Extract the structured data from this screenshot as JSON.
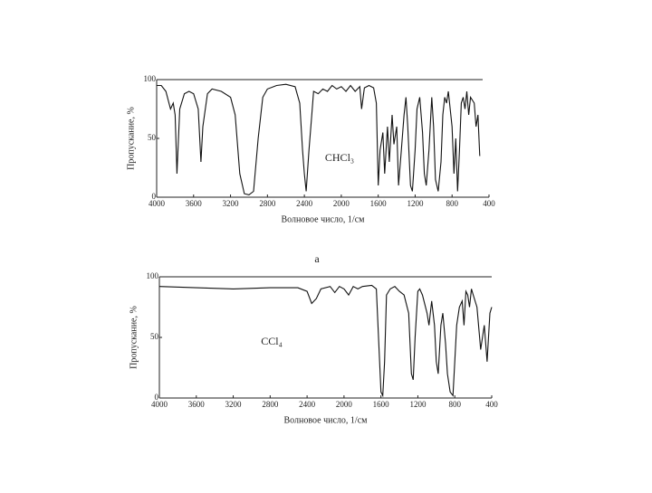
{
  "chart_data": [
    {
      "type": "line",
      "annotation": "CHCl₃",
      "xlabel": "Волновое число, 1/см",
      "ylabel": "Пропускание, %",
      "color": "#111111",
      "xlim": [
        4000,
        400
      ],
      "xticks": [
        4000,
        3600,
        3200,
        2800,
        2400,
        2000,
        1600,
        1200,
        800,
        400
      ],
      "ylim": [
        0,
        100
      ],
      "yticks": [
        0,
        50,
        100
      ],
      "grid": false,
      "x": [
        4000,
        3950,
        3900,
        3850,
        3820,
        3800,
        3780,
        3750,
        3700,
        3650,
        3600,
        3550,
        3520,
        3500,
        3450,
        3400,
        3300,
        3200,
        3150,
        3100,
        3050,
        3000,
        2950,
        2900,
        2850,
        2800,
        2700,
        2600,
        2500,
        2450,
        2420,
        2400,
        2380,
        2350,
        2320,
        2300,
        2250,
        2200,
        2150,
        2100,
        2050,
        2000,
        1950,
        1900,
        1850,
        1800,
        1780,
        1750,
        1700,
        1650,
        1620,
        1600,
        1580,
        1550,
        1530,
        1500,
        1480,
        1450,
        1430,
        1400,
        1380,
        1350,
        1320,
        1300,
        1280,
        1250,
        1230,
        1200,
        1180,
        1150,
        1120,
        1100,
        1080,
        1050,
        1020,
        1000,
        980,
        950,
        920,
        900,
        880,
        860,
        840,
        800,
        780,
        760,
        740,
        720,
        700,
        680,
        660,
        640,
        620,
        600,
        560,
        540,
        520,
        500
      ],
      "values": [
        95,
        95,
        90,
        75,
        80,
        70,
        20,
        75,
        88,
        90,
        88,
        75,
        30,
        60,
        88,
        92,
        90,
        85,
        70,
        20,
        3,
        2,
        5,
        50,
        85,
        92,
        95,
        96,
        94,
        80,
        40,
        20,
        5,
        40,
        70,
        90,
        88,
        92,
        90,
        95,
        92,
        94,
        90,
        95,
        90,
        94,
        75,
        93,
        95,
        93,
        80,
        10,
        40,
        55,
        20,
        60,
        30,
        70,
        45,
        60,
        10,
        40,
        70,
        85,
        60,
        10,
        5,
        40,
        75,
        85,
        55,
        20,
        10,
        40,
        85,
        60,
        15,
        5,
        30,
        70,
        85,
        80,
        90,
        60,
        20,
        50,
        5,
        40,
        80,
        85,
        75,
        90,
        70,
        85,
        80,
        60,
        70,
        35
      ]
    },
    {
      "type": "line",
      "annotation": "CCl₄",
      "xlabel": "Волновое число, 1/см",
      "ylabel": "Пропускание, %",
      "color": "#111111",
      "xlim": [
        4000,
        400
      ],
      "xticks": [
        4000,
        3600,
        3200,
        2800,
        2400,
        2000,
        1600,
        1200,
        800,
        400
      ],
      "ylim": [
        0,
        100
      ],
      "yticks": [
        0,
        50,
        100
      ],
      "grid": false,
      "x": [
        4000,
        3600,
        3200,
        2800,
        2500,
        2400,
        2350,
        2300,
        2250,
        2150,
        2100,
        2050,
        2000,
        1950,
        1900,
        1850,
        1800,
        1700,
        1650,
        1620,
        1600,
        1580,
        1560,
        1540,
        1500,
        1450,
        1400,
        1350,
        1300,
        1270,
        1250,
        1230,
        1200,
        1180,
        1150,
        1100,
        1080,
        1050,
        1020,
        1000,
        980,
        950,
        930,
        900,
        880,
        850,
        820,
        800,
        780,
        750,
        720,
        700,
        680,
        660,
        640,
        620,
        600,
        560,
        520,
        480,
        450,
        420,
        400
      ],
      "values": [
        92,
        91,
        90,
        91,
        91,
        88,
        78,
        82,
        90,
        92,
        87,
        92,
        90,
        85,
        92,
        90,
        92,
        93,
        90,
        40,
        5,
        2,
        30,
        85,
        90,
        92,
        88,
        85,
        70,
        20,
        15,
        50,
        88,
        90,
        85,
        70,
        60,
        80,
        60,
        30,
        20,
        60,
        70,
        45,
        20,
        5,
        2,
        30,
        60,
        75,
        80,
        60,
        88,
        85,
        75,
        90,
        85,
        75,
        40,
        60,
        30,
        70,
        75
      ]
    }
  ],
  "caption": "а"
}
